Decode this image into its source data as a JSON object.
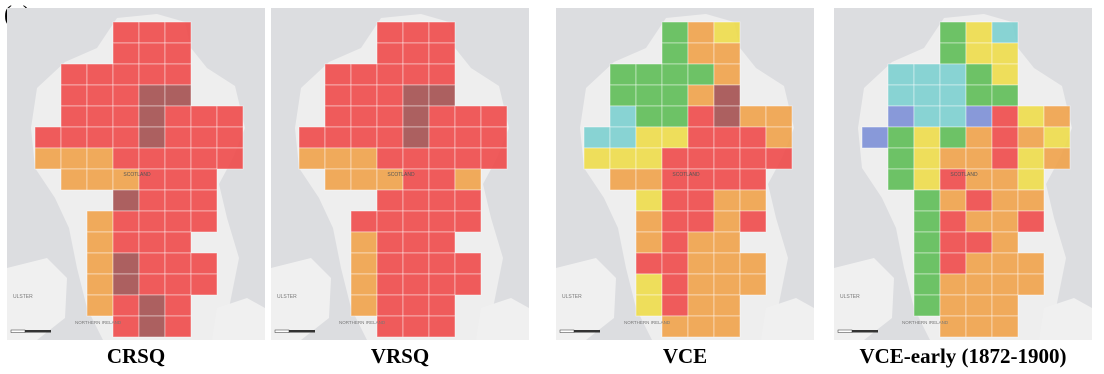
{
  "figure": {
    "panel_label": "(c)"
  },
  "colors": {
    "red": "#ee4a4a",
    "orange": "#efa24a",
    "darkred": "#a45050",
    "green": "#5ebd56",
    "cyan": "#7ccfcf",
    "yellow": "#eddc4a",
    "blue": "#7c8fd6"
  },
  "maps": [
    {
      "caption": "CRSQ",
      "labels": {
        "country": "SCOTLAND",
        "region1": "ULSTER",
        "region2": "NORTHERN IRELAND"
      },
      "rows": [
        "...RRR..",
        "...RRR..",
        ".RRRRR..",
        ".RRRDD..",
        ".RRRDRRR",
        "RRRRDRRR",
        "OOORRRRR",
        ".OOORRR.",
        "...DRRR.",
        "..ORRRR.",
        "..ORRR..",
        "..ODRRR.",
        "..ODRRR.",
        "..ORDR..",
        "...RDR.."
      ]
    },
    {
      "caption": "VRSQ",
      "labels": {
        "country": "SCOTLAND",
        "region1": "ULSTER",
        "region2": "NORTHERN IRELAND"
      },
      "rows": [
        "...RRR..",
        "...RRR..",
        ".RRRRR..",
        ".RRRDD..",
        ".RRRDRRR",
        "RRRRDRRR",
        "OOORRRRR",
        ".OOORRO.",
        "...RRRR.",
        "..RRRRR.",
        "..ORRR..",
        "..ORRRR.",
        "..ORRRR.",
        "..ORRR..",
        "...RRR.."
      ]
    },
    {
      "caption": "VCE",
      "labels": {
        "country": "SCOTLAND",
        "region1": "ULSTER",
        "region2": "NORTHERN IRELAND"
      },
      "rows": [
        "...GOY..",
        "...GOO..",
        ".GGGGO..",
        ".GGGOD..",
        ".CGGRDOO",
        "CCYYRRRO",
        "YYYRRRRR",
        ".OORRRR.",
        "..YRROO.",
        "..ORROR.",
        "..OROO..",
        "..RROOO.",
        "..YROOO.",
        "..YROO..",
        "...OOO.."
      ]
    },
    {
      "caption": "VCE-early (1872-1900)",
      "labels": {
        "country": "SCOTLAND",
        "region1": "ULSTER",
        "region2": "NORTHERN IRELAND"
      },
      "rows": [
        "...GYC..",
        "...GYY..",
        ".CCCGY..",
        ".CCCGG..",
        ".BCCBRYO",
        "BGYGOROY",
        ".GYOORYO",
        ".GYROOY.",
        "..GOROO.",
        "..GROOR.",
        "..GRRO..",
        "..GROOO.",
        "..GOOOO.",
        "..GOOO..",
        "...OOO.."
      ]
    }
  ]
}
